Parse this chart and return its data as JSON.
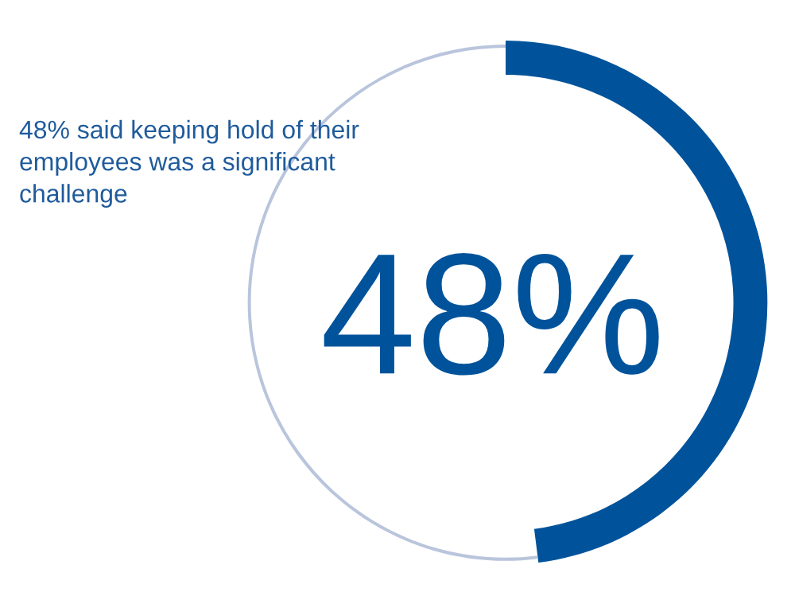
{
  "chart_data": {
    "type": "donut",
    "title": "48% said keeping hold of their\nemployees was a significant\nchallenge",
    "categories": [
      null,
      null
    ],
    "values": [
      48,
      52
    ],
    "colors": [
      "#00539b",
      "#b9c5dc"
    ],
    "annotations": [
      "48%"
    ]
  }
}
